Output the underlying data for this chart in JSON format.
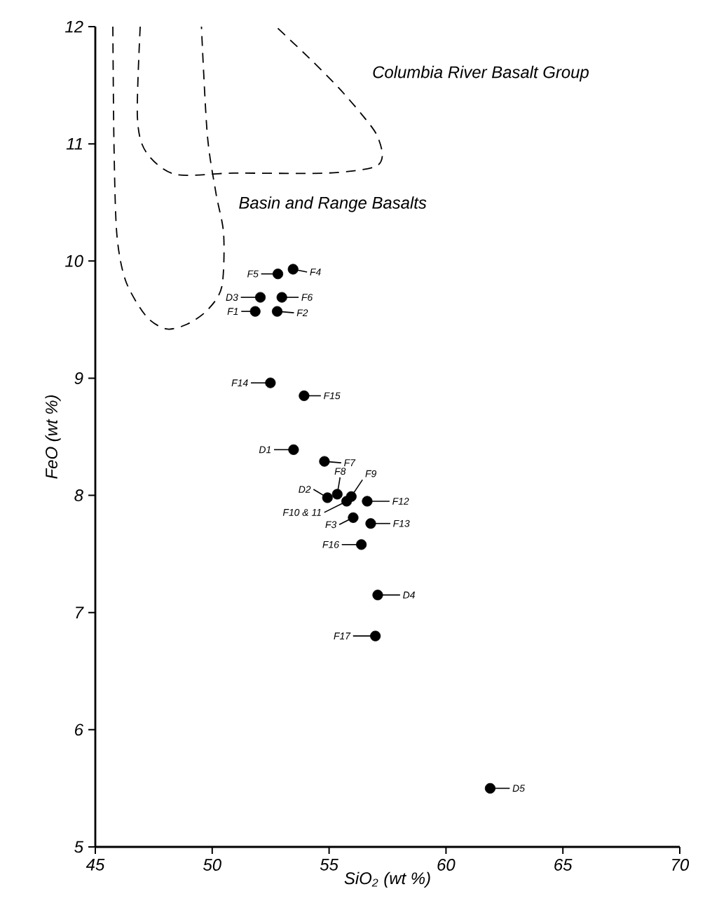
{
  "chart_data": {
    "type": "scatter",
    "xlabel": "SiO$_{2}$ (wt %)",
    "ylabel": "FeO (wt %)",
    "xlim": [
      45,
      70
    ],
    "xticks": [
      45,
      50,
      55,
      60,
      65,
      70
    ],
    "ylim": [
      5,
      12
    ],
    "yticks": [
      5,
      6,
      7,
      8,
      9,
      10,
      11,
      12
    ],
    "series": [
      {
        "color": "#000000",
        "marker": "circle",
        "x": [
          53.46,
          52.81,
          52.06,
          52.98,
          51.84,
          52.78,
          52.49,
          53.93,
          53.48,
          54.8,
          54.93,
          55.35,
          55.95,
          55.75,
          56.63,
          56.03,
          56.78,
          56.38,
          57.08,
          56.98,
          61.89
        ],
        "values": [
          9.93,
          9.89,
          9.69,
          9.69,
          9.57,
          9.57,
          8.96,
          8.85,
          8.39,
          8.29,
          7.98,
          8.01,
          7.99,
          7.95,
          7.95,
          7.81,
          7.76,
          7.58,
          7.15,
          6.8,
          5.5
        ]
      },
      {
        "type": "line",
        "name": "Columbia River Basalt Group",
        "color": "#000000",
        "marker": "none",
        "line_style": "dashed",
        "x": [
          46.92,
          46.8,
          47.17,
          48.42,
          50.91,
          54.9,
          56.9,
          57.28,
          57.03,
          56.4,
          55.4,
          54.16,
          52.73
        ],
        "values": [
          12,
          11.23,
          10.93,
          10.74,
          10.75,
          10.75,
          10.8,
          10.9,
          11.08,
          11.25,
          11.48,
          11.73,
          12
        ]
      },
      {
        "type": "line",
        "name": "Basin and Range Basalts",
        "color": "#000000",
        "marker": "none",
        "line_style": "dashed",
        "x": [
          45.75,
          45.8,
          45.92,
          46.3,
          47.17,
          48.04,
          48.92,
          49.79,
          50.41,
          50.49,
          50.16,
          49.79,
          49.54
        ],
        "values": [
          12,
          10.98,
          10.23,
          9.83,
          9.53,
          9.42,
          9.46,
          9.58,
          9.78,
          10.23,
          10.58,
          11.08,
          12
        ]
      }
    ],
    "annotations": [
      {
        "text": "F4",
        "x": 53.46,
        "y": 9.93
      },
      {
        "text": "F5",
        "x": 52.81,
        "y": 9.89
      },
      {
        "text": "D3",
        "x": 52.06,
        "y": 9.69
      },
      {
        "text": "F6",
        "x": 52.98,
        "y": 9.69
      },
      {
        "text": "F1",
        "x": 51.84,
        "y": 9.57
      },
      {
        "text": "F2",
        "x": 52.78,
        "y": 9.57
      },
      {
        "text": "F14",
        "x": 52.49,
        "y": 8.96
      },
      {
        "text": "F15",
        "x": 53.93,
        "y": 8.85
      },
      {
        "text": "D1",
        "x": 53.48,
        "y": 8.39
      },
      {
        "text": "F7",
        "x": 54.8,
        "y": 8.29
      },
      {
        "text": "D2",
        "x": 54.93,
        "y": 7.98
      },
      {
        "text": "F8",
        "x": 55.35,
        "y": 8.01
      },
      {
        "text": "F9",
        "x": 55.95,
        "y": 7.99
      },
      {
        "text": "F10 & 11",
        "x": 55.75,
        "y": 7.95
      },
      {
        "text": "F12",
        "x": 56.63,
        "y": 7.95
      },
      {
        "text": "F3",
        "x": 56.03,
        "y": 7.81
      },
      {
        "text": "F13",
        "x": 56.78,
        "y": 7.76
      },
      {
        "text": "F16",
        "x": 56.38,
        "y": 7.58
      },
      {
        "text": "D4",
        "x": 57.08,
        "y": 7.15
      },
      {
        "text": "F17",
        "x": 56.98,
        "y": 6.8
      },
      {
        "text": "D5",
        "x": 61.89,
        "y": 5.5
      }
    ]
  }
}
